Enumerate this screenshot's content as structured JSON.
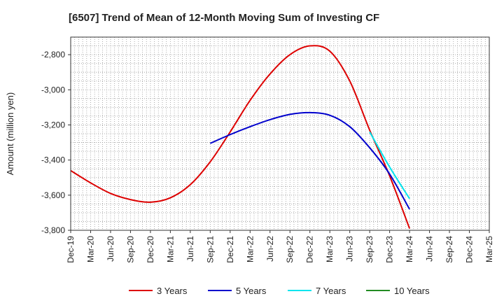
{
  "chart_data": {
    "type": "line",
    "title": "[6507]  Trend of Mean of 12-Month Moving Sum of Investing CF",
    "xlabel": "",
    "ylabel": "Amount (million yen)",
    "ylim": [
      -3800,
      -2700
    ],
    "yticks": [
      -2800,
      -3000,
      -3200,
      -3400,
      -3600,
      -3800
    ],
    "ytick_labels": [
      "-2,800",
      "-3,000",
      "-3,200",
      "-3,400",
      "-3,600",
      "-3,800"
    ],
    "categories": [
      "Dec-19",
      "Mar-20",
      "Jun-20",
      "Sep-20",
      "Dec-20",
      "Mar-21",
      "Jun-21",
      "Sep-21",
      "Dec-21",
      "Mar-22",
      "Jun-22",
      "Sep-22",
      "Dec-22",
      "Mar-23",
      "Jun-23",
      "Sep-23",
      "Dec-23",
      "Mar-24",
      "Jun-24",
      "Sep-24",
      "Dec-24",
      "Mar-25"
    ],
    "grid": true,
    "legend_position": "bottom",
    "series": [
      {
        "name": "3 Years",
        "color": "#dd0000",
        "values": [
          -3460,
          -3530,
          -3590,
          -3625,
          -3640,
          -3615,
          -3540,
          -3410,
          -3240,
          -3060,
          -2910,
          -2800,
          -2750,
          -2780,
          -2950,
          -3230,
          -3490,
          -3790,
          null,
          null,
          null,
          null
        ]
      },
      {
        "name": "5 Years",
        "color": "#0000cc",
        "values": [
          null,
          null,
          null,
          null,
          null,
          null,
          null,
          -3305,
          -3255,
          -3210,
          -3170,
          -3140,
          -3130,
          -3145,
          -3210,
          -3330,
          -3480,
          -3680,
          null,
          null,
          null,
          null
        ]
      },
      {
        "name": "7 Years",
        "color": "#00e5ee",
        "values": [
          null,
          null,
          null,
          null,
          null,
          null,
          null,
          null,
          null,
          null,
          null,
          null,
          null,
          null,
          null,
          -3240,
          -3440,
          -3620,
          null,
          null,
          null,
          null
        ]
      },
      {
        "name": "10 Years",
        "color": "#228b22",
        "values": [
          null,
          null,
          null,
          null,
          null,
          null,
          null,
          null,
          null,
          null,
          null,
          null,
          null,
          null,
          null,
          null,
          null,
          null,
          null,
          null,
          null,
          null
        ]
      }
    ]
  }
}
